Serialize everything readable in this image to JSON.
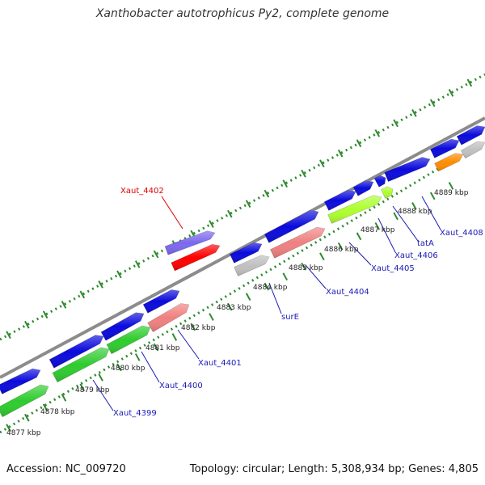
{
  "title": "Xanthobacter autotrophicus Py2, complete genome",
  "footer": {
    "accession": "Accession: NC_009720",
    "summary": "Topology: circular; Length: 5,308,934 bp; Genes: 4,805"
  },
  "colors": {
    "backbone": "#8c8c8c",
    "forward_cds": "#0a0adc",
    "reverse_cds": "#2ecc2e",
    "highlight_cds": "#ff0000",
    "highlight_label": "#dd0000",
    "gene_label": "#1a1ab4",
    "tick": "#2e8b2e",
    "light_green": "#adff2f",
    "pink": "#f08080",
    "gray_feature": "#c0c0c0",
    "orange": "#ff8c00",
    "purple": "#7b68ee"
  },
  "scale_labels": [
    "4877 kbp",
    "4878 kbp",
    "4879 kbp",
    "4880 kbp",
    "4881 kbp",
    "4882 kbp",
    "4883 kbp",
    "4884 kbp",
    "4885 kbp",
    "4886 kbp",
    "4887 kbp",
    "4888 kbp",
    "4889 kbp"
  ],
  "gene_labels": [
    "Xaut_4399",
    "Xaut_4400",
    "Xaut_4401",
    "Xaut_4402",
    "surE",
    "Xaut_4404",
    "Xaut_4405",
    "Xaut_4406",
    "tatA",
    "Xaut_4408"
  ],
  "highlighted_gene": "Xaut_4402"
}
